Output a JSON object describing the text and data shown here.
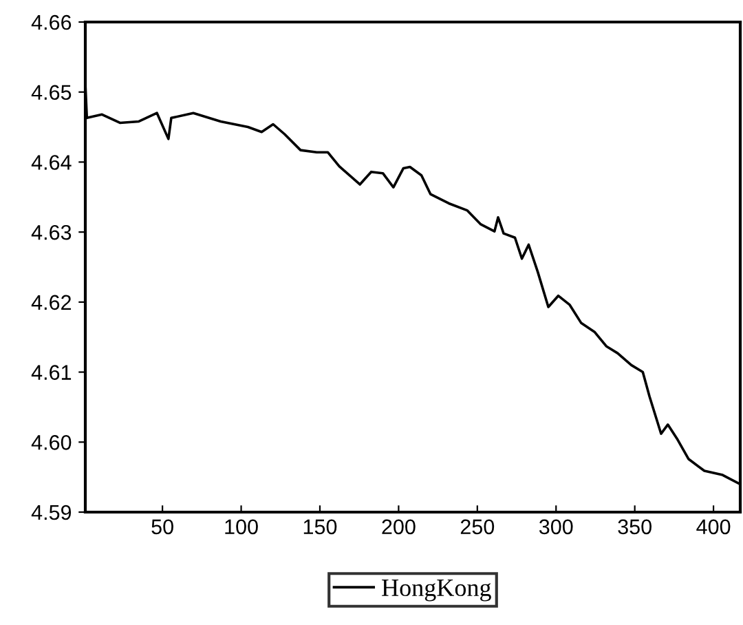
{
  "chart_data": {
    "type": "line",
    "xlim": [
      1,
      417
    ],
    "ylim": [
      4.59,
      4.66
    ],
    "xticks": [
      50,
      100,
      150,
      200,
      250,
      300,
      350,
      400
    ],
    "yticks": [
      {
        "value": 4.59,
        "label": "4.59"
      },
      {
        "value": 4.6,
        "label": "4.60"
      },
      {
        "value": 4.61,
        "label": "4.61"
      },
      {
        "value": 4.62,
        "label": "4.62"
      },
      {
        "value": 4.63,
        "label": "4.63"
      },
      {
        "value": 4.64,
        "label": "4.64"
      },
      {
        "value": 4.65,
        "label": "4.65"
      },
      {
        "value": 4.66,
        "label": "4.66"
      }
    ],
    "grid": false,
    "legend": "bottom",
    "series": [
      {
        "name": "HongKong",
        "color": "#000000",
        "x": [
          1,
          2,
          11.6,
          23,
          35,
          46.5,
          53.8,
          55.6,
          69.6,
          87,
          104.3,
          113,
          120.3,
          127.5,
          137.7,
          148,
          155,
          162.3,
          175.4,
          182.6,
          190,
          196.7,
          203,
          207.2,
          214.5,
          220.3,
          231.9,
          243.5,
          252.2,
          260.9,
          263.2,
          266.7,
          273.9,
          278.3,
          282.6,
          288.4,
          295.1,
          301.4,
          308.7,
          316,
          324.6,
          331.9,
          339.1,
          347.8,
          355.1,
          359.4,
          366.7,
          371,
          376.8,
          384.1,
          394.2,
          405.8,
          416.8
        ],
        "values": [
          4.6512,
          4.6463,
          4.6468,
          4.6456,
          4.6458,
          4.647,
          4.6433,
          4.6463,
          4.647,
          4.6458,
          4.645,
          4.6443,
          4.6454,
          4.644,
          4.6417,
          4.6414,
          4.6414,
          4.6394,
          4.6368,
          4.6386,
          4.6384,
          4.6364,
          4.6391,
          4.6393,
          4.6381,
          4.6354,
          4.6341,
          4.6331,
          4.6311,
          4.6301,
          4.6321,
          4.6298,
          4.6292,
          4.6262,
          4.6282,
          4.6243,
          4.6193,
          4.6209,
          4.6196,
          4.617,
          4.6157,
          4.6137,
          4.6127,
          4.611,
          4.61,
          4.6065,
          4.6012,
          4.6025,
          4.6005,
          4.5976,
          4.5959,
          4.5953,
          4.594
        ]
      }
    ]
  }
}
